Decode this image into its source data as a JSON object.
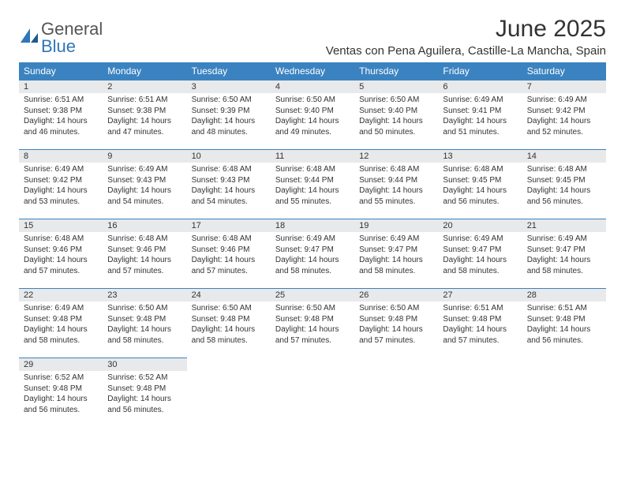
{
  "brand": {
    "word1": "General",
    "word2": "Blue"
  },
  "title": "June 2025",
  "location": "Ventas con Pena Aguilera, Castille-La Mancha, Spain",
  "colors": {
    "header_bg": "#3b83c0",
    "daynum_bg": "#e8e9ea",
    "rule": "#3b83c0"
  },
  "weekdays": [
    "Sunday",
    "Monday",
    "Tuesday",
    "Wednesday",
    "Thursday",
    "Friday",
    "Saturday"
  ],
  "weeks": [
    [
      {
        "n": "1",
        "sr": "Sunrise: 6:51 AM",
        "ss": "Sunset: 9:38 PM",
        "d1": "Daylight: 14 hours",
        "d2": "and 46 minutes."
      },
      {
        "n": "2",
        "sr": "Sunrise: 6:51 AM",
        "ss": "Sunset: 9:38 PM",
        "d1": "Daylight: 14 hours",
        "d2": "and 47 minutes."
      },
      {
        "n": "3",
        "sr": "Sunrise: 6:50 AM",
        "ss": "Sunset: 9:39 PM",
        "d1": "Daylight: 14 hours",
        "d2": "and 48 minutes."
      },
      {
        "n": "4",
        "sr": "Sunrise: 6:50 AM",
        "ss": "Sunset: 9:40 PM",
        "d1": "Daylight: 14 hours",
        "d2": "and 49 minutes."
      },
      {
        "n": "5",
        "sr": "Sunrise: 6:50 AM",
        "ss": "Sunset: 9:40 PM",
        "d1": "Daylight: 14 hours",
        "d2": "and 50 minutes."
      },
      {
        "n": "6",
        "sr": "Sunrise: 6:49 AM",
        "ss": "Sunset: 9:41 PM",
        "d1": "Daylight: 14 hours",
        "d2": "and 51 minutes."
      },
      {
        "n": "7",
        "sr": "Sunrise: 6:49 AM",
        "ss": "Sunset: 9:42 PM",
        "d1": "Daylight: 14 hours",
        "d2": "and 52 minutes."
      }
    ],
    [
      {
        "n": "8",
        "sr": "Sunrise: 6:49 AM",
        "ss": "Sunset: 9:42 PM",
        "d1": "Daylight: 14 hours",
        "d2": "and 53 minutes."
      },
      {
        "n": "9",
        "sr": "Sunrise: 6:49 AM",
        "ss": "Sunset: 9:43 PM",
        "d1": "Daylight: 14 hours",
        "d2": "and 54 minutes."
      },
      {
        "n": "10",
        "sr": "Sunrise: 6:48 AM",
        "ss": "Sunset: 9:43 PM",
        "d1": "Daylight: 14 hours",
        "d2": "and 54 minutes."
      },
      {
        "n": "11",
        "sr": "Sunrise: 6:48 AM",
        "ss": "Sunset: 9:44 PM",
        "d1": "Daylight: 14 hours",
        "d2": "and 55 minutes."
      },
      {
        "n": "12",
        "sr": "Sunrise: 6:48 AM",
        "ss": "Sunset: 9:44 PM",
        "d1": "Daylight: 14 hours",
        "d2": "and 55 minutes."
      },
      {
        "n": "13",
        "sr": "Sunrise: 6:48 AM",
        "ss": "Sunset: 9:45 PM",
        "d1": "Daylight: 14 hours",
        "d2": "and 56 minutes."
      },
      {
        "n": "14",
        "sr": "Sunrise: 6:48 AM",
        "ss": "Sunset: 9:45 PM",
        "d1": "Daylight: 14 hours",
        "d2": "and 56 minutes."
      }
    ],
    [
      {
        "n": "15",
        "sr": "Sunrise: 6:48 AM",
        "ss": "Sunset: 9:46 PM",
        "d1": "Daylight: 14 hours",
        "d2": "and 57 minutes."
      },
      {
        "n": "16",
        "sr": "Sunrise: 6:48 AM",
        "ss": "Sunset: 9:46 PM",
        "d1": "Daylight: 14 hours",
        "d2": "and 57 minutes."
      },
      {
        "n": "17",
        "sr": "Sunrise: 6:48 AM",
        "ss": "Sunset: 9:46 PM",
        "d1": "Daylight: 14 hours",
        "d2": "and 57 minutes."
      },
      {
        "n": "18",
        "sr": "Sunrise: 6:49 AM",
        "ss": "Sunset: 9:47 PM",
        "d1": "Daylight: 14 hours",
        "d2": "and 58 minutes."
      },
      {
        "n": "19",
        "sr": "Sunrise: 6:49 AM",
        "ss": "Sunset: 9:47 PM",
        "d1": "Daylight: 14 hours",
        "d2": "and 58 minutes."
      },
      {
        "n": "20",
        "sr": "Sunrise: 6:49 AM",
        "ss": "Sunset: 9:47 PM",
        "d1": "Daylight: 14 hours",
        "d2": "and 58 minutes."
      },
      {
        "n": "21",
        "sr": "Sunrise: 6:49 AM",
        "ss": "Sunset: 9:47 PM",
        "d1": "Daylight: 14 hours",
        "d2": "and 58 minutes."
      }
    ],
    [
      {
        "n": "22",
        "sr": "Sunrise: 6:49 AM",
        "ss": "Sunset: 9:48 PM",
        "d1": "Daylight: 14 hours",
        "d2": "and 58 minutes."
      },
      {
        "n": "23",
        "sr": "Sunrise: 6:50 AM",
        "ss": "Sunset: 9:48 PM",
        "d1": "Daylight: 14 hours",
        "d2": "and 58 minutes."
      },
      {
        "n": "24",
        "sr": "Sunrise: 6:50 AM",
        "ss": "Sunset: 9:48 PM",
        "d1": "Daylight: 14 hours",
        "d2": "and 58 minutes."
      },
      {
        "n": "25",
        "sr": "Sunrise: 6:50 AM",
        "ss": "Sunset: 9:48 PM",
        "d1": "Daylight: 14 hours",
        "d2": "and 57 minutes."
      },
      {
        "n": "26",
        "sr": "Sunrise: 6:50 AM",
        "ss": "Sunset: 9:48 PM",
        "d1": "Daylight: 14 hours",
        "d2": "and 57 minutes."
      },
      {
        "n": "27",
        "sr": "Sunrise: 6:51 AM",
        "ss": "Sunset: 9:48 PM",
        "d1": "Daylight: 14 hours",
        "d2": "and 57 minutes."
      },
      {
        "n": "28",
        "sr": "Sunrise: 6:51 AM",
        "ss": "Sunset: 9:48 PM",
        "d1": "Daylight: 14 hours",
        "d2": "and 56 minutes."
      }
    ],
    [
      {
        "n": "29",
        "sr": "Sunrise: 6:52 AM",
        "ss": "Sunset: 9:48 PM",
        "d1": "Daylight: 14 hours",
        "d2": "and 56 minutes."
      },
      {
        "n": "30",
        "sr": "Sunrise: 6:52 AM",
        "ss": "Sunset: 9:48 PM",
        "d1": "Daylight: 14 hours",
        "d2": "and 56 minutes."
      },
      null,
      null,
      null,
      null,
      null
    ]
  ]
}
